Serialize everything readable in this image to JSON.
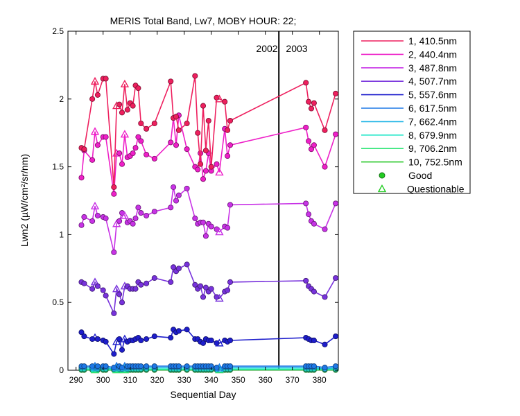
{
  "chart_data": {
    "type": "line",
    "title": "MERIS Total Band, Lw7, MOBY HOUR: 22;",
    "xlabel": "Sequential Day",
    "ylabel": "Lwn2 (µW/cm²/sr/nm)",
    "xlim": [
      287,
      387
    ],
    "ylim": [
      0,
      2.5
    ],
    "xticks": [
      290,
      300,
      310,
      320,
      330,
      340,
      350,
      360,
      370,
      380
    ],
    "yticks": [
      0,
      0.5,
      1,
      1.5,
      2,
      2.5
    ],
    "ytick_labels": [
      "0",
      "0.5",
      "1",
      "1.5",
      "2",
      "2.5"
    ],
    "grid": false,
    "legend_position": "outside-top-right",
    "annotations": {
      "vline_x": 365,
      "year_left": "2002",
      "year_right": "2003"
    },
    "x": [
      292,
      293,
      296,
      297,
      298,
      300,
      301,
      304,
      305,
      306,
      307,
      308,
      309,
      310,
      311,
      312,
      313,
      314,
      316,
      319,
      325,
      326,
      327,
      328,
      331,
      334,
      335,
      336,
      337,
      338,
      339,
      340,
      342,
      343,
      345,
      346,
      347,
      375,
      376,
      377,
      378,
      382,
      386
    ],
    "series": [
      {
        "name": "1, 410.5nm",
        "color": "#ee1f5e",
        "values": [
          1.64,
          1.63,
          2.0,
          2.13,
          2.03,
          2.15,
          2.15,
          1.35,
          1.95,
          1.96,
          1.9,
          2.11,
          1.92,
          1.97,
          1.95,
          2.1,
          2.08,
          1.82,
          1.78,
          1.82,
          2.13,
          1.86,
          1.87,
          1.77,
          1.82,
          2.17,
          1.75,
          1.52,
          1.95,
          1.62,
          1.84,
          1.5,
          2.01,
          2.0,
          1.98,
          1.77,
          1.84,
          2.12,
          1.98,
          1.93,
          1.97,
          1.77,
          2.04
        ]
      },
      {
        "name": "2, 440.4nm",
        "color": "#ee1fc8",
        "values": [
          1.42,
          1.62,
          1.55,
          1.76,
          1.66,
          1.72,
          1.72,
          1.3,
          1.6,
          1.6,
          1.52,
          1.74,
          1.57,
          1.58,
          1.6,
          1.64,
          1.72,
          1.69,
          1.59,
          1.56,
          1.68,
          1.86,
          1.66,
          1.88,
          1.63,
          1.5,
          1.48,
          1.6,
          1.41,
          1.47,
          1.6,
          1.47,
          1.52,
          1.46,
          1.78,
          1.58,
          1.66,
          1.79,
          1.69,
          1.63,
          1.66,
          1.5,
          1.74
        ]
      },
      {
        "name": "3, 487.8nm",
        "color": "#c832e6",
        "values": [
          1.07,
          1.13,
          1.1,
          1.21,
          1.14,
          1.13,
          1.12,
          0.87,
          1.08,
          1.1,
          1.16,
          1.14,
          1.09,
          1.1,
          1.08,
          1.12,
          1.2,
          1.16,
          1.14,
          1.17,
          1.2,
          1.35,
          1.25,
          1.29,
          1.34,
          1.12,
          1.08,
          1.09,
          1.09,
          0.99,
          1.08,
          1.06,
          1.04,
          1.02,
          1.06,
          1.05,
          1.22,
          1.23,
          1.15,
          1.1,
          1.08,
          1.04,
          1.23
        ]
      },
      {
        "name": "4, 507.7nm",
        "color": "#7832dc",
        "values": [
          0.65,
          0.64,
          0.6,
          0.65,
          0.62,
          0.59,
          0.55,
          0.42,
          0.6,
          0.56,
          0.5,
          0.62,
          0.62,
          0.6,
          0.6,
          0.6,
          0.65,
          0.63,
          0.64,
          0.68,
          0.65,
          0.76,
          0.73,
          0.75,
          0.78,
          0.63,
          0.6,
          0.62,
          0.54,
          0.61,
          0.58,
          0.6,
          0.54,
          0.53,
          0.58,
          0.59,
          0.65,
          0.66,
          0.62,
          0.6,
          0.58,
          0.54,
          0.68
        ]
      },
      {
        "name": "5, 557.6nm",
        "color": "#1e1ecc",
        "values": [
          0.28,
          0.25,
          0.23,
          0.24,
          0.23,
          0.22,
          0.21,
          0.12,
          0.21,
          0.23,
          0.15,
          0.23,
          0.21,
          0.22,
          0.22,
          0.23,
          0.24,
          0.22,
          0.23,
          0.25,
          0.24,
          0.3,
          0.28,
          0.29,
          0.3,
          0.23,
          0.23,
          0.21,
          0.2,
          0.23,
          0.22,
          0.22,
          0.2,
          0.2,
          0.22,
          0.21,
          0.22,
          0.24,
          0.23,
          0.22,
          0.22,
          0.19,
          0.25
        ]
      },
      {
        "name": "6, 617.5nm",
        "color": "#1e78e6",
        "values": [
          0.03,
          0.03,
          0.03,
          0.03,
          0.03,
          0.03,
          0.03,
          0.02,
          0.03,
          0.03,
          0.02,
          0.03,
          0.03,
          0.03,
          0.03,
          0.03,
          0.03,
          0.03,
          0.03,
          0.03,
          0.03,
          0.03,
          0.03,
          0.03,
          0.03,
          0.03,
          0.03,
          0.03,
          0.03,
          0.03,
          0.03,
          0.03,
          0.02,
          0.02,
          0.03,
          0.03,
          0.03,
          0.03,
          0.03,
          0.03,
          0.03,
          0.02,
          0.03
        ]
      },
      {
        "name": "7, 662.4nm",
        "color": "#1eb4e6",
        "values": [
          0.02,
          0.02,
          0.02,
          0.02,
          0.02,
          0.02,
          0.02,
          0.01,
          0.02,
          0.02,
          0.01,
          0.02,
          0.02,
          0.02,
          0.02,
          0.02,
          0.02,
          0.02,
          0.02,
          0.02,
          0.02,
          0.02,
          0.02,
          0.02,
          0.02,
          0.02,
          0.02,
          0.02,
          0.02,
          0.02,
          0.02,
          0.02,
          0.01,
          0.01,
          0.02,
          0.02,
          0.02,
          0.02,
          0.02,
          0.02,
          0.02,
          0.01,
          0.02
        ]
      },
      {
        "name": "8, 679.9nm",
        "color": "#1ee6c8",
        "values": [
          0.01,
          0.01,
          0.01,
          0.01,
          0.01,
          0.01,
          0.01,
          0.01,
          0.01,
          0.01,
          0.01,
          0.01,
          0.01,
          0.01,
          0.01,
          0.01,
          0.01,
          0.01,
          0.01,
          0.01,
          0.01,
          0.01,
          0.01,
          0.01,
          0.01,
          0.01,
          0.01,
          0.01,
          0.01,
          0.01,
          0.01,
          0.01,
          0.01,
          0.01,
          0.01,
          0.01,
          0.01,
          0.01,
          0.01,
          0.01,
          0.01,
          0.01,
          0.01
        ]
      },
      {
        "name": "9, 706.2nm",
        "color": "#32e678",
        "values": [
          0.005,
          0.005,
          0.005,
          0.005,
          0.005,
          0.005,
          0.005,
          0.005,
          0.005,
          0.005,
          0.005,
          0.005,
          0.005,
          0.005,
          0.005,
          0.005,
          0.005,
          0.005,
          0.005,
          0.005,
          0.005,
          0.005,
          0.005,
          0.005,
          0.005,
          0.005,
          0.005,
          0.005,
          0.005,
          0.005,
          0.005,
          0.005,
          0.005,
          0.005,
          0.005,
          0.005,
          0.005,
          0.005,
          0.005,
          0.005,
          0.005,
          0.005,
          0.005
        ]
      },
      {
        "name": "10, 752.5nm",
        "color": "#28c828",
        "values": [
          0.002,
          0.002,
          0.002,
          0.002,
          0.002,
          0.002,
          0.002,
          0.002,
          0.002,
          0.002,
          0.002,
          0.002,
          0.002,
          0.002,
          0.002,
          0.002,
          0.002,
          0.002,
          0.002,
          0.002,
          0.002,
          0.002,
          0.002,
          0.002,
          0.002,
          0.002,
          0.002,
          0.002,
          0.002,
          0.002,
          0.002,
          0.002,
          0.002,
          0.002,
          0.002,
          0.002,
          0.002,
          0.002,
          0.002,
          0.002,
          0.002,
          0.002,
          0.002
        ]
      }
    ],
    "questionable_x": [
      297,
      305,
      308,
      343
    ],
    "legend_markers": [
      {
        "label": "Good",
        "marker": "circle",
        "color": "#22cc22"
      },
      {
        "label": "Questionable",
        "marker": "triangle",
        "color": "#22cc22"
      }
    ]
  }
}
